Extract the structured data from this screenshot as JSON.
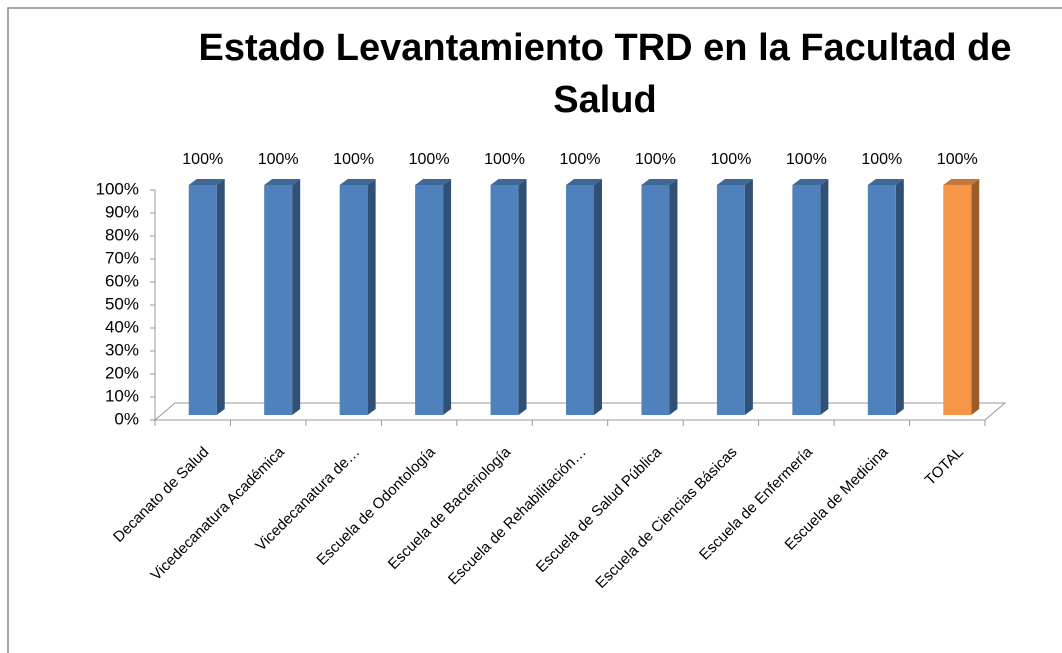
{
  "chart_data": {
    "type": "bar3d",
    "title": "Estado Levantamiento TRD en la Facultad de Salud",
    "categories": [
      "Decanato de Salud",
      "Vicedecanatura Académica",
      "Vicedecanatura de…",
      "Escuela de Odontología",
      "Escuela de Bacteriología",
      "Escuela de Rehabilitación…",
      "Escuela de Salud Pública",
      "Escuela de Ciencias Básicas",
      "Escuela de Enfermería",
      "Escuela de Medicina",
      "TOTAL"
    ],
    "values": [
      100,
      100,
      100,
      100,
      100,
      100,
      100,
      100,
      100,
      100,
      100
    ],
    "value_labels": [
      "100%",
      "100%",
      "100%",
      "100%",
      "100%",
      "100%",
      "100%",
      "100%",
      "100%",
      "100%",
      "100%"
    ],
    "colors": [
      "#4f81bd",
      "#4f81bd",
      "#4f81bd",
      "#4f81bd",
      "#4f81bd",
      "#4f81bd",
      "#4f81bd",
      "#4f81bd",
      "#4f81bd",
      "#4f81bd",
      "#f79646"
    ],
    "ylim": [
      0,
      100
    ],
    "yticks": [
      {
        "value": 0,
        "label": "0%"
      },
      {
        "value": 10,
        "label": "10%"
      },
      {
        "value": 20,
        "label": "20%"
      },
      {
        "value": 30,
        "label": "30%"
      },
      {
        "value": 40,
        "label": "40%"
      },
      {
        "value": 50,
        "label": "50%"
      },
      {
        "value": 60,
        "label": "60%"
      },
      {
        "value": 70,
        "label": "70%"
      },
      {
        "value": 80,
        "label": "80%"
      },
      {
        "value": 90,
        "label": "90%"
      },
      {
        "value": 100,
        "label": "100%"
      }
    ],
    "grid": false
  }
}
